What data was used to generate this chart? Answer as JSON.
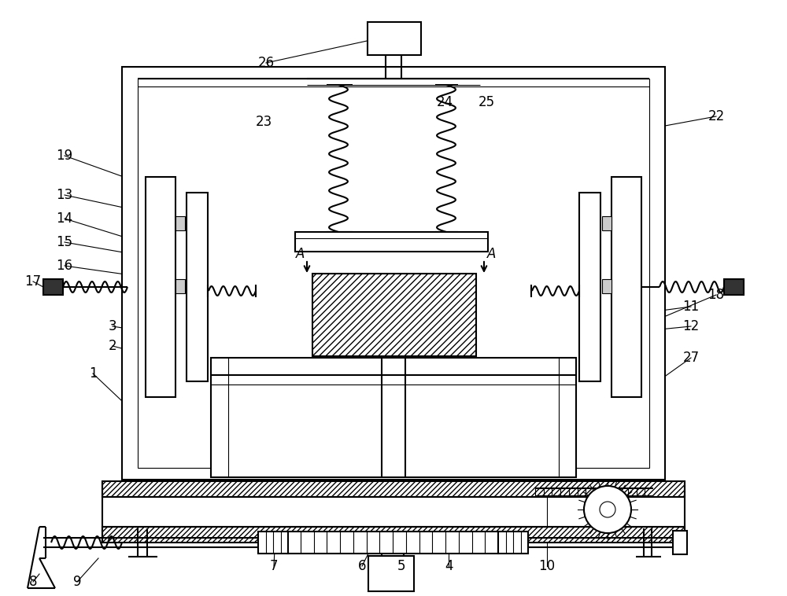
{
  "fig_w": 10.0,
  "fig_h": 7.58,
  "dpi": 100,
  "lw": 1.5,
  "tlw": 0.8,
  "mlw": 1.2,
  "bg": "#ffffff"
}
